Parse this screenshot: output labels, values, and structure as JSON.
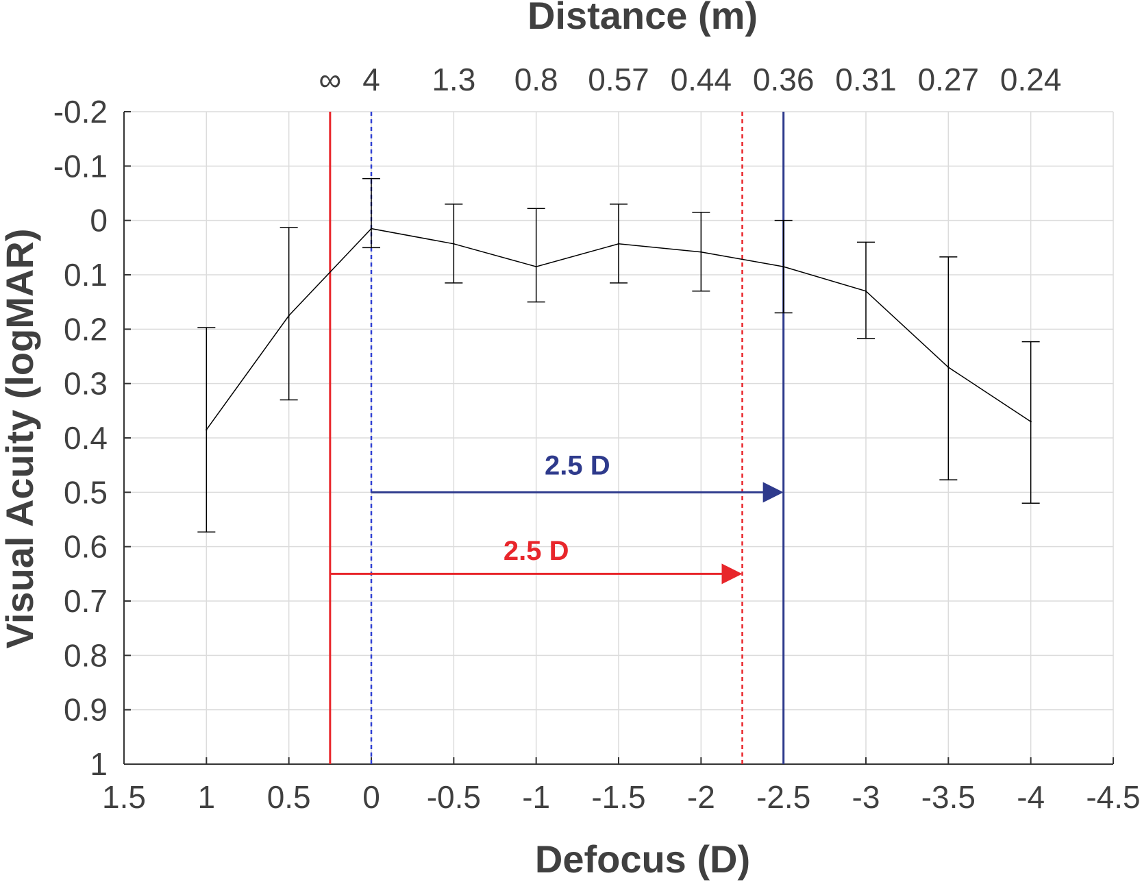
{
  "chart_data": {
    "type": "line",
    "xlabel": "Defocus (D)",
    "ylabel": "Visual Acuity (logMAR)",
    "top_axis_label": "Distance (m)",
    "xlim": [
      1.5,
      -4.5
    ],
    "ylim": [
      -0.2,
      1
    ],
    "y_reversed": true,
    "grid": true,
    "x_ticks": [
      1.5,
      1,
      0.5,
      0,
      -0.5,
      -1,
      -1.5,
      -2,
      -2.5,
      -3,
      -3.5,
      -4,
      -4.5
    ],
    "x_tick_labels": [
      "1.5",
      "1",
      "0.5",
      "0",
      "-0.5",
      "-1",
      "-1.5",
      "-2",
      "-2.5",
      "-3",
      "-3.5",
      "-4",
      "-4.5"
    ],
    "y_ticks": [
      -0.2,
      -0.1,
      0,
      0.1,
      0.2,
      0.3,
      0.4,
      0.5,
      0.6,
      0.7,
      0.8,
      0.9,
      1
    ],
    "y_tick_labels": [
      "-0.2",
      "-0.1",
      "0",
      "0.1",
      "0.2",
      "0.3",
      "0.4",
      "0.5",
      "0.6",
      "0.7",
      "0.8",
      "0.9",
      "1"
    ],
    "top_ticks": [
      {
        "x": 0.25,
        "label": "∞"
      },
      {
        "x": 0,
        "label": "4"
      },
      {
        "x": -0.5,
        "label": "1.3"
      },
      {
        "x": -1,
        "label": "0.8"
      },
      {
        "x": -1.5,
        "label": "0.57"
      },
      {
        "x": -2,
        "label": "0.44"
      },
      {
        "x": -2.5,
        "label": "0.36"
      },
      {
        "x": -3,
        "label": "0.31"
      },
      {
        "x": -3.5,
        "label": "0.27"
      },
      {
        "x": -4,
        "label": "0.24"
      }
    ],
    "series": [
      {
        "color": "#000000",
        "x": [
          1,
          0.5,
          0,
          -0.5,
          -1,
          -1.5,
          -2,
          -2.5,
          -3,
          -3.5,
          -4
        ],
        "y": [
          0.385,
          0.175,
          0.015,
          0.043,
          0.085,
          0.043,
          0.058,
          0.085,
          0.13,
          0.27,
          0.37
        ],
        "err_low": [
          0.573,
          0.33,
          0.05,
          0.115,
          0.15,
          0.115,
          0.13,
          0.17,
          0.217,
          0.477,
          0.52
        ],
        "err_high": [
          0.197,
          0.013,
          -0.077,
          -0.03,
          -0.022,
          -0.03,
          -0.015,
          0.0,
          0.04,
          0.067,
          0.223
        ]
      }
    ],
    "vlines": [
      {
        "x": 0.25,
        "color": "#e8262b",
        "style": "solid"
      },
      {
        "x": 0,
        "color": "#2f3fd3",
        "style": "dotted"
      },
      {
        "x": -2.25,
        "color": "#e8262b",
        "style": "dotted"
      },
      {
        "x": -2.5,
        "color": "#2e3a8c",
        "style": "solid"
      }
    ],
    "annotations": [
      {
        "text": "2.5 D",
        "color": "#2e3a8c",
        "from_x": 0,
        "to_x": -2.5,
        "y": 0.5,
        "label_x": -1.25,
        "label_y": 0.45
      },
      {
        "text": "2.5 D",
        "color": "#e8262b",
        "from_x": 0.25,
        "to_x": -2.25,
        "y": 0.65,
        "label_x": -1.0,
        "label_y": 0.607
      }
    ]
  }
}
